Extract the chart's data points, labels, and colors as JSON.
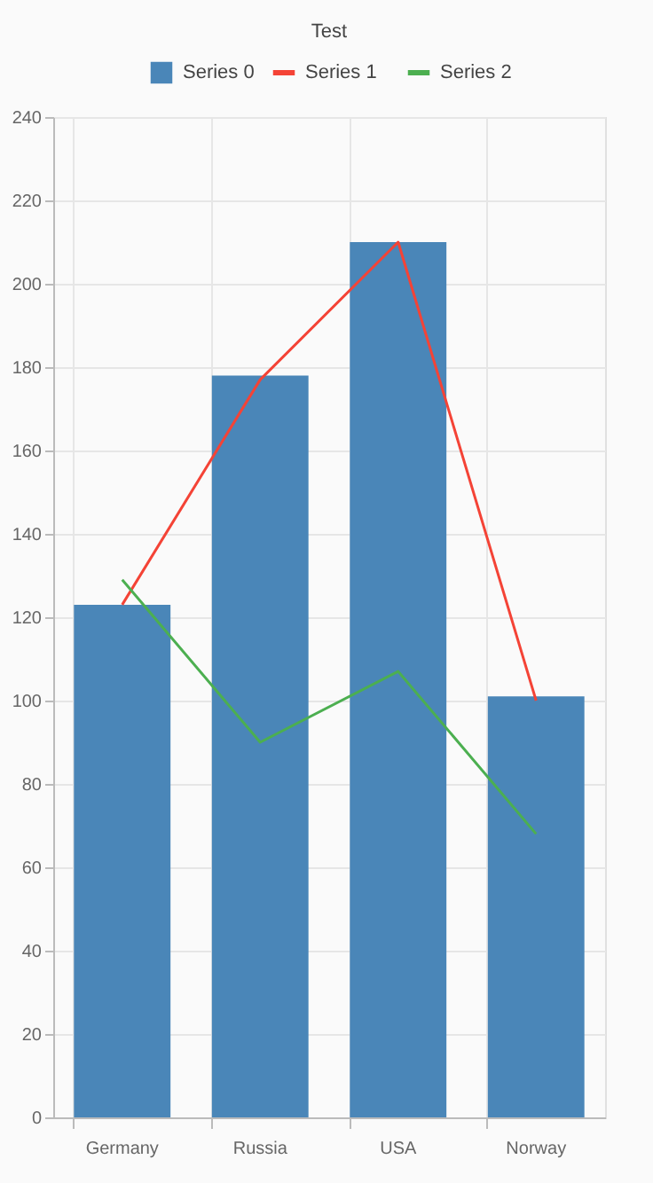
{
  "chart_data": {
    "type": "bar",
    "title": "Test",
    "categories": [
      "Germany",
      "Russia",
      "USA",
      "Norway"
    ],
    "series": [
      {
        "name": "Series 0",
        "color": "#4a86b8",
        "values": [
          123,
          178,
          210,
          101
        ]
      },
      {
        "name": "Series 1",
        "type": "line",
        "color": "#f44336",
        "values": [
          123,
          177,
          210,
          100
        ]
      },
      {
        "name": "Series 2",
        "type": "line",
        "color": "#4caf50",
        "values": [
          129,
          90,
          107,
          68
        ]
      }
    ],
    "ylim": [
      0,
      240
    ],
    "yticks": [
      0,
      20,
      40,
      60,
      80,
      100,
      120,
      140,
      160,
      180,
      200,
      220,
      240
    ],
    "grid": true,
    "legend": "top"
  }
}
